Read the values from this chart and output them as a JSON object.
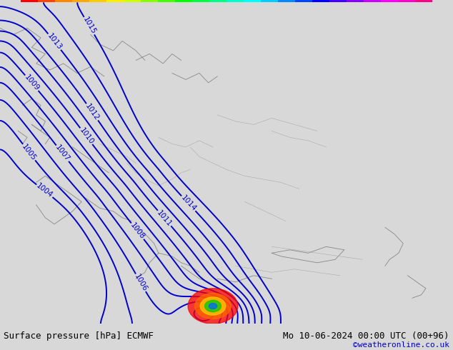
{
  "title_left": "Surface pressure [hPa] ECMWF",
  "title_right": "Mo 10-06-2024 00:00 UTC (00+96)",
  "copyright": "©weatheronline.co.uk",
  "bg_color": "#d8d8d8",
  "map_bg_color": "#aad4a0",
  "contour_color": "#0000cc",
  "contour_linewidth": 1.4,
  "label_fontsize": 7.5,
  "footer_fontsize": 9,
  "figsize": [
    6.34,
    4.9
  ],
  "dpi": 100,
  "levels": [
    1004,
    1005,
    1006,
    1007,
    1008,
    1009,
    1010,
    1011,
    1012,
    1013,
    1014,
    1015
  ],
  "colorbar_colors": [
    "#ff0000",
    "#ff4400",
    "#ff8800",
    "#ffaa00",
    "#ffcc00",
    "#ffee00",
    "#ccff00",
    "#88ff00",
    "#44ff00",
    "#00ff00",
    "#00ff44",
    "#00ff88",
    "#00ffcc",
    "#00ffff",
    "#00ccff",
    "#0088ff",
    "#0044ff",
    "#0000ff",
    "#4400ff",
    "#8800ff",
    "#cc00ff",
    "#ff00ff",
    "#ff00cc",
    "#ff0088"
  ]
}
